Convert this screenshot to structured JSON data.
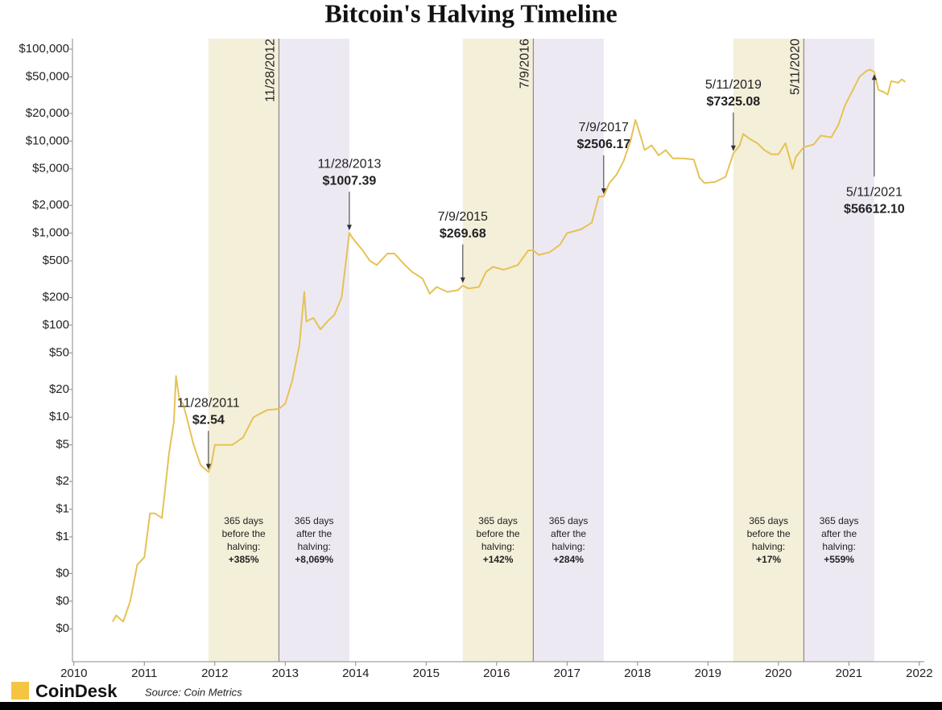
{
  "chart_data": {
    "type": "line",
    "title": "Bitcoin's Halving Timeline",
    "log_y": true,
    "color": "#e6c255",
    "xlim": [
      2009.98,
      2022.07
    ],
    "xticks": [
      2010,
      2011,
      2012,
      2013,
      2014,
      2015,
      2016,
      2017,
      2018,
      2019,
      2020,
      2021,
      2022
    ],
    "ylim": [
      0.022,
      130000
    ],
    "yticks": [
      {
        "value": 100000,
        "label": "$100,000"
      },
      {
        "value": 50000,
        "label": "$50,000"
      },
      {
        "value": 20000,
        "label": "$20,000"
      },
      {
        "value": 10000,
        "label": "$10,000"
      },
      {
        "value": 5000,
        "label": "$5,000"
      },
      {
        "value": 2000,
        "label": "$2,000"
      },
      {
        "value": 1000,
        "label": "$1,000"
      },
      {
        "value": 500,
        "label": "$500"
      },
      {
        "value": 200,
        "label": "$200"
      },
      {
        "value": 100,
        "label": "$100"
      },
      {
        "value": 50,
        "label": "$50"
      },
      {
        "value": 20,
        "label": "$20"
      },
      {
        "value": 10,
        "label": "$10"
      },
      {
        "value": 5,
        "label": "$5"
      },
      {
        "value": 2,
        "label": "$2"
      },
      {
        "value": 1,
        "label": "$1"
      },
      {
        "value": 0.5,
        "label": "$1"
      },
      {
        "value": 0.2,
        "label": "$0"
      },
      {
        "value": 0.1,
        "label": "$0"
      },
      {
        "value": 0.05,
        "label": "$0"
      }
    ],
    "x": [
      2010.55,
      2010.6,
      2010.7,
      2010.8,
      2010.9,
      2011.0,
      2011.08,
      2011.15,
      2011.25,
      2011.35,
      2011.42,
      2011.45,
      2011.5,
      2011.55,
      2011.6,
      2011.7,
      2011.8,
      2011.91,
      2011.95,
      2012.0,
      2012.1,
      2012.25,
      2012.4,
      2012.55,
      2012.65,
      2012.75,
      2012.91,
      2013.0,
      2013.1,
      2013.2,
      2013.27,
      2013.3,
      2013.4,
      2013.5,
      2013.6,
      2013.7,
      2013.8,
      2013.91,
      2013.95,
      2014.0,
      2014.1,
      2014.2,
      2014.3,
      2014.45,
      2014.55,
      2014.7,
      2014.8,
      2014.95,
      2015.05,
      2015.15,
      2015.3,
      2015.45,
      2015.52,
      2015.6,
      2015.75,
      2015.85,
      2015.95,
      2016.1,
      2016.3,
      2016.45,
      2016.52,
      2016.6,
      2016.75,
      2016.9,
      2017.0,
      2017.2,
      2017.35,
      2017.45,
      2017.52,
      2017.6,
      2017.7,
      2017.8,
      2017.9,
      2017.97,
      2018.05,
      2018.1,
      2018.2,
      2018.3,
      2018.4,
      2018.5,
      2018.65,
      2018.8,
      2018.88,
      2018.95,
      2019.1,
      2019.25,
      2019.36,
      2019.45,
      2019.5,
      2019.6,
      2019.7,
      2019.8,
      2019.9,
      2020.0,
      2020.1,
      2020.2,
      2020.25,
      2020.36,
      2020.5,
      2020.6,
      2020.75,
      2020.85,
      2020.95,
      2021.05,
      2021.15,
      2021.25,
      2021.3,
      2021.36,
      2021.42,
      2021.5,
      2021.55,
      2021.6,
      2021.7,
      2021.75,
      2021.8
    ],
    "values": [
      0.06,
      0.07,
      0.06,
      0.1,
      0.25,
      0.3,
      0.9,
      0.9,
      0.8,
      4,
      9,
      28,
      15,
      14,
      10,
      5,
      3,
      2.54,
      3,
      5,
      5,
      5,
      6,
      10,
      11,
      12,
      12.3,
      14,
      25,
      60,
      230,
      110,
      120,
      90,
      110,
      130,
      200,
      1007.39,
      900,
      800,
      650,
      500,
      450,
      600,
      600,
      450,
      380,
      320,
      220,
      260,
      230,
      240,
      269.68,
      250,
      260,
      380,
      430,
      400,
      450,
      650,
      650,
      580,
      620,
      750,
      1000,
      1100,
      1300,
      2500,
      2506.17,
      3500,
      4300,
      6000,
      10000,
      17000,
      11000,
      8000,
      9000,
      7000,
      8000,
      6500,
      6500,
      6300,
      4000,
      3500,
      3600,
      4100,
      7325.08,
      9000,
      12000,
      10500,
      9500,
      8000,
      7200,
      7200,
      9500,
      5000,
      6800,
      8600,
      9200,
      11500,
      11000,
      15000,
      25000,
      35000,
      50000,
      58000,
      60000,
      56612.1,
      36000,
      34000,
      32000,
      45000,
      43000,
      47000,
      44000
    ],
    "halvings": [
      {
        "x": 2012.91,
        "label": "11/28/2012",
        "band": [
          2011.91,
          2012.91,
          2013.91
        ],
        "before_text": [
          "365 days",
          "before the",
          "halving:",
          "+385%"
        ],
        "after_text": [
          "365 days",
          "after the",
          "halving:",
          "+8,069%"
        ]
      },
      {
        "x": 2016.52,
        "label": "7/9/2016",
        "band": [
          2015.52,
          2016.52,
          2017.52
        ],
        "before_text": [
          "365 days",
          "before the",
          "halving:",
          "+142%"
        ],
        "after_text": [
          "365 days",
          "after the",
          "halving:",
          "+284%"
        ]
      },
      {
        "x": 2020.36,
        "label": "5/11/2020",
        "band": [
          2019.36,
          2020.36,
          2021.36
        ],
        "before_text": [
          "365 days",
          "before the",
          "halving:",
          "+17%"
        ],
        "after_text": [
          "365 days",
          "after the",
          "halving:",
          "+559%"
        ]
      }
    ],
    "annotations": [
      {
        "x": 2011.91,
        "y": 2.54,
        "date": "11/28/2011",
        "label": "$2.54"
      },
      {
        "x": 2013.91,
        "y": 1007.39,
        "date": "11/28/2013",
        "label": "$1007.39"
      },
      {
        "x": 2015.52,
        "y": 269.68,
        "date": "7/9/2015",
        "label": "$269.68"
      },
      {
        "x": 2017.52,
        "y": 2506.17,
        "date": "7/9/2017",
        "label": "$2506.17"
      },
      {
        "x": 2019.36,
        "y": 7325.08,
        "date": "5/11/2019",
        "label": "$7325.08"
      },
      {
        "x": 2021.36,
        "y": 56612.1,
        "date": "5/11/2021",
        "label": "$56612.10"
      }
    ],
    "brand": "CoinDesk",
    "source": "Source: Coin Metrics"
  }
}
